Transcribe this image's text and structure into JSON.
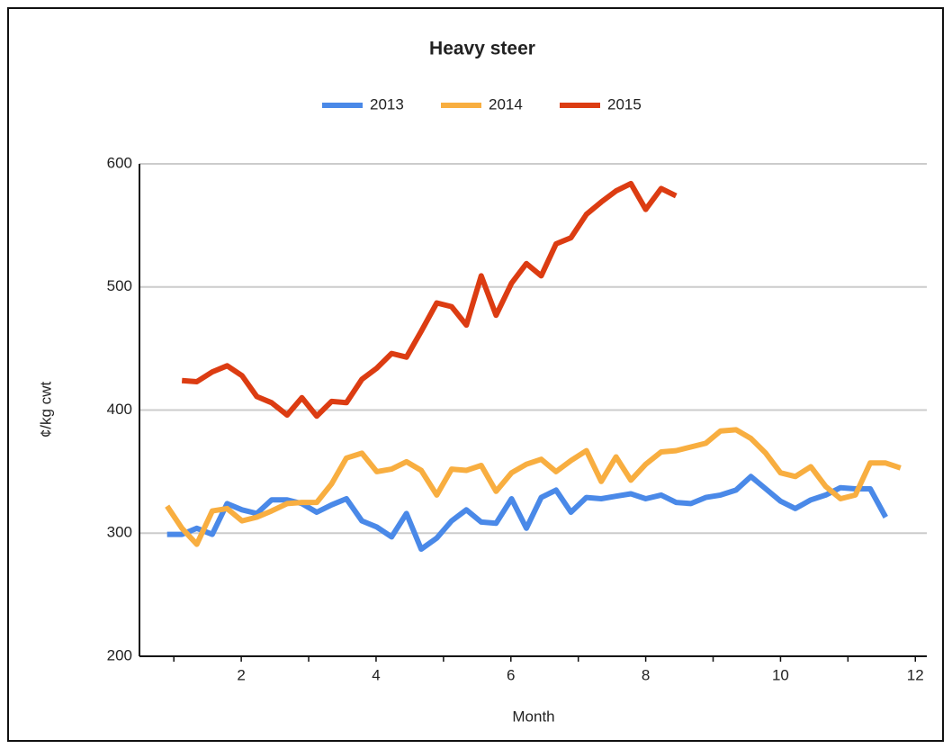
{
  "chart_data": {
    "type": "line",
    "title": "Heavy steer",
    "xlabel": "Month",
    "ylabel": "¢/kg cwt",
    "x": [
      0.9,
      1.12,
      1.34,
      1.57,
      1.79,
      2.01,
      2.23,
      2.45,
      2.68,
      2.9,
      3.12,
      3.34,
      3.56,
      3.79,
      4.01,
      4.23,
      4.45,
      4.67,
      4.9,
      5.12,
      5.34,
      5.56,
      5.78,
      6.01,
      6.23,
      6.45,
      6.67,
      6.89,
      7.12,
      7.34,
      7.56,
      7.78,
      8.0,
      8.23,
      8.45,
      8.67,
      8.89,
      9.11,
      9.34,
      9.56,
      9.78,
      10.0,
      10.22,
      10.45,
      10.67,
      10.89,
      11.11,
      11.33,
      11.56,
      11.78
    ],
    "series": [
      {
        "name": "2013",
        "color": "#4a89e8",
        "values": [
          299,
          299,
          304,
          299,
          324,
          319,
          316,
          327,
          327,
          324,
          317,
          323,
          328,
          310,
          305,
          297,
          316,
          287,
          296,
          310,
          319,
          309,
          308,
          328,
          304,
          329,
          335,
          317,
          329,
          328,
          330,
          332,
          328,
          331,
          325,
          324,
          329,
          331,
          335,
          346,
          336,
          326,
          320,
          327,
          331,
          337,
          336,
          336,
          313,
          null
        ]
      },
      {
        "name": "2014",
        "color": "#f8ae40",
        "values": [
          322,
          304,
          291,
          318,
          320,
          310,
          313,
          318,
          324,
          325,
          325,
          340,
          361,
          365,
          350,
          352,
          358,
          351,
          331,
          352,
          351,
          355,
          334,
          349,
          356,
          360,
          350,
          359,
          367,
          342,
          362,
          343,
          356,
          366,
          367,
          370,
          373,
          383,
          384,
          377,
          365,
          349,
          346,
          354,
          338,
          328,
          331,
          357,
          357,
          353
        ]
      },
      {
        "name": "2015",
        "color": "#dc3c12",
        "values": [
          null,
          424,
          423,
          431,
          436,
          428,
          411,
          406,
          396,
          410,
          395,
          407,
          406,
          425,
          434,
          446,
          443,
          464,
          487,
          484,
          469,
          509,
          477,
          503,
          519,
          509,
          535,
          540,
          559,
          569,
          578,
          584,
          563,
          580,
          574,
          null,
          null,
          null,
          null,
          null,
          null,
          null,
          null,
          null,
          null,
          null,
          null,
          null,
          null,
          null
        ]
      }
    ],
    "xlim": [
      0.49,
      12.17
    ],
    "xticks": [
      2,
      4,
      6,
      8,
      10,
      12
    ],
    "xminorticks": [
      1,
      3,
      5,
      7,
      9,
      11
    ],
    "ylim": [
      200,
      600
    ],
    "yticks": [
      200,
      300,
      400,
      500,
      600
    ],
    "grid": true,
    "legend": "top"
  }
}
